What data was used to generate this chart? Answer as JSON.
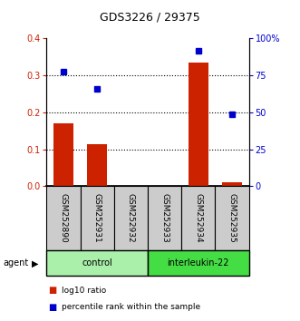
{
  "title": "GDS3226 / 29375",
  "samples": [
    "GSM252890",
    "GSM252931",
    "GSM252932",
    "GSM252933",
    "GSM252934",
    "GSM252935"
  ],
  "log10_ratio": [
    0.17,
    0.115,
    0.0,
    0.0,
    0.335,
    0.01
  ],
  "percentile_rank": [
    77.5,
    66.0,
    null,
    null,
    92.0,
    48.5
  ],
  "groups": [
    {
      "label": "control",
      "samples": [
        0,
        1,
        2
      ],
      "color": "#aaf0aa"
    },
    {
      "label": "interleukin-22",
      "samples": [
        3,
        4,
        5
      ],
      "color": "#44dd44"
    }
  ],
  "bar_color": "#cc2200",
  "point_color": "#0000cc",
  "ylim_left": [
    0,
    0.4
  ],
  "ylim_right": [
    0,
    100
  ],
  "yticks_left": [
    0.0,
    0.1,
    0.2,
    0.3,
    0.4
  ],
  "yticks_right": [
    0,
    25,
    50,
    75,
    100
  ],
  "ytick_labels_right": [
    "0",
    "25",
    "50",
    "75",
    "100%"
  ],
  "grid_values": [
    0.1,
    0.2,
    0.3
  ],
  "background_color": "#ffffff",
  "agent_label": "agent",
  "legend": [
    {
      "label": "log10 ratio",
      "color": "#cc2200"
    },
    {
      "label": "percentile rank within the sample",
      "color": "#0000cc"
    }
  ]
}
